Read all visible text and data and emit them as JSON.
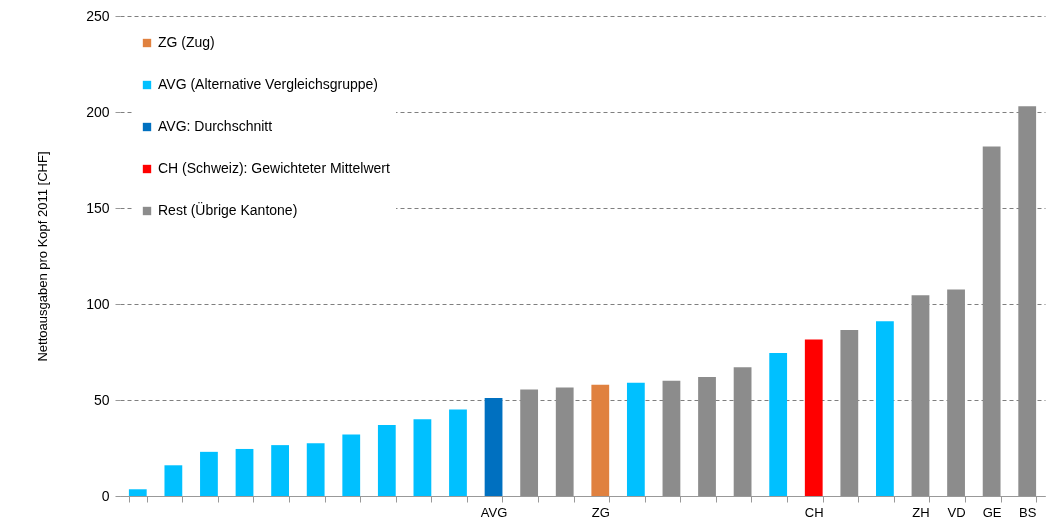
{
  "chart_data": {
    "type": "bar",
    "ylabel": "Nettoausgaben pro Kopf 2011 [CHF]",
    "categories": [
      null,
      null,
      null,
      null,
      null,
      null,
      null,
      null,
      null,
      null,
      "AVG",
      null,
      null,
      "ZG",
      null,
      null,
      null,
      null,
      null,
      "CH",
      null,
      null,
      "ZH",
      "VD",
      "GE",
      "BS"
    ],
    "series": [
      {
        "name": "ZG (Zug)",
        "color": "#e0813f",
        "values": [
          null,
          null,
          null,
          null,
          null,
          null,
          null,
          null,
          null,
          null,
          null,
          null,
          null,
          58,
          null,
          null,
          null,
          null,
          null,
          null,
          null,
          null,
          null,
          null,
          null,
          null
        ]
      },
      {
        "name": "AVG (Alternative Vergleichsgruppe)",
        "color": "#00c0ff",
        "values": [
          3.5,
          16,
          23,
          24.5,
          26.5,
          27.5,
          32,
          37,
          40,
          45,
          null,
          null,
          null,
          null,
          59,
          null,
          null,
          null,
          74.5,
          null,
          null,
          91,
          null,
          null,
          null,
          null
        ]
      },
      {
        "name": "AVG: Durchschnitt",
        "color": "#0070c0",
        "values": [
          null,
          null,
          null,
          null,
          null,
          null,
          null,
          null,
          null,
          null,
          51,
          null,
          null,
          null,
          null,
          null,
          null,
          null,
          null,
          null,
          null,
          null,
          null,
          null,
          null,
          null
        ]
      },
      {
        "name": "CH (Schweiz): Gewichteter Mittelwert",
        "color": "#ff0000",
        "values": [
          null,
          null,
          null,
          null,
          null,
          null,
          null,
          null,
          null,
          null,
          null,
          null,
          null,
          null,
          null,
          null,
          null,
          null,
          null,
          81.5,
          null,
          null,
          null,
          null,
          null,
          null
        ]
      },
      {
        "name": "Rest (Übrige Kantone)",
        "color": "#8c8c8c",
        "values": [
          null,
          null,
          null,
          null,
          null,
          null,
          null,
          null,
          null,
          null,
          null,
          55.5,
          56.5,
          null,
          null,
          60,
          62,
          67,
          null,
          null,
          86.5,
          null,
          104.5,
          107.5,
          182,
          203
        ]
      }
    ],
    "ylim": [
      0,
      250
    ],
    "yticks": [
      0,
      50,
      100,
      150,
      200,
      250
    ],
    "grid": "y",
    "legend": "top left"
  }
}
